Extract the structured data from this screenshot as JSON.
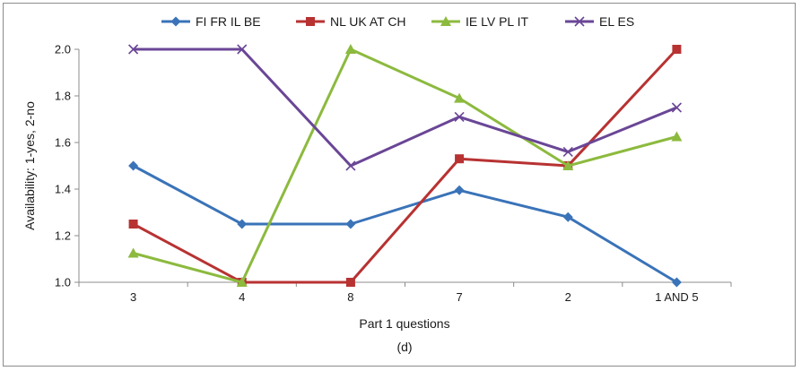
{
  "chart_data": {
    "type": "line",
    "categories": [
      "3",
      "4",
      "8",
      "7",
      "2",
      "1 AND 5"
    ],
    "series": [
      {
        "name": "FI FR IL BE",
        "color": "#3a73b8",
        "marker": "diamond",
        "values": [
          1.5,
          1.25,
          1.25,
          1.395,
          1.28,
          1.0
        ]
      },
      {
        "name": "NL UK AT CH",
        "color": "#b83232",
        "marker": "square",
        "values": [
          1.25,
          1.0,
          1.0,
          1.53,
          1.5,
          2.0
        ]
      },
      {
        "name": "IE LV PL IT",
        "color": "#8cba3e",
        "marker": "triangle",
        "values": [
          1.125,
          1.0,
          2.0,
          1.79,
          1.5,
          1.625
        ]
      },
      {
        "name": "EL ES",
        "color": "#6a4696",
        "marker": "x",
        "values": [
          2.0,
          2.0,
          1.5,
          1.71,
          1.56,
          1.75
        ]
      }
    ],
    "yticks": [
      "1.0",
      "1.2",
      "1.4",
      "1.6",
      "1.8",
      "2.0"
    ],
    "ylim": [
      1.0,
      2.0
    ],
    "xlabel": "Part 1 questions",
    "ylabel": "Availability: 1-yes, 2-no",
    "caption": "(d)",
    "legend_position": "top"
  }
}
